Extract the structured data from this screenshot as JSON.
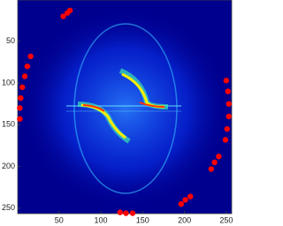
{
  "chart_data": {
    "type": "scatter",
    "xlim": [
      0.5,
      256.5
    ],
    "ylim": [
      0.5,
      256.5
    ],
    "y_reversed": true,
    "xticks": [
      50,
      100,
      150,
      200,
      250
    ],
    "yticks": [
      50,
      100,
      150,
      200,
      250
    ],
    "series": [
      {
        "color": "#ff0000",
        "x": [
          55,
          60,
          63,
          16,
          12,
          9,
          6,
          4,
          3,
          3,
          250,
          252,
          253,
          253,
          251,
          249,
          241,
          236,
          232,
          207,
          201,
          196,
          123,
          130,
          138
        ],
        "values": [
          20,
          16,
          13,
          68,
          80,
          92,
          105,
          118,
          130,
          143,
          97,
          110,
          125,
          140,
          155,
          168,
          188,
          195,
          203,
          236,
          240,
          245,
          255,
          256,
          256
        ]
      }
    ]
  }
}
